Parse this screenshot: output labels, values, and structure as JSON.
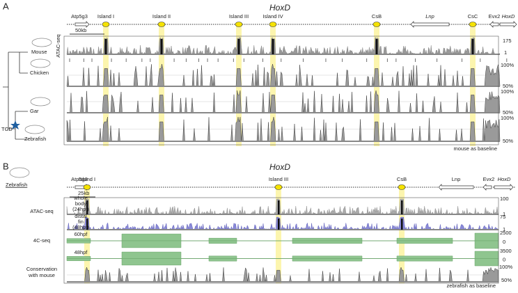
{
  "panel_a": {
    "label": "A",
    "title": "HoxD",
    "genes": [
      "Atp5g3",
      "Island I",
      "Island II",
      "Island III",
      "Island IV",
      "CsB",
      "Lnp",
      "CsC",
      "Evx2",
      "HoxD"
    ],
    "scale_bar": "50kb",
    "atac": {
      "label": "ATAC-seq",
      "max": "175",
      "min": "1"
    },
    "species": [
      "Mouse",
      "Chicken",
      "Gar",
      "Zebrafish"
    ],
    "tgd": "TGD",
    "conservation_axes": [
      [
        "100%",
        "50%"
      ],
      [
        "100%",
        "50%"
      ],
      [
        "100%",
        "50%"
      ]
    ],
    "baseline_note": "mouse as baseline"
  },
  "panel_b": {
    "label": "B",
    "title": "HoxD",
    "species": "Zebrafish",
    "genes": [
      "Atp5g3",
      "Island I",
      "Island III",
      "CsB",
      "Lnp",
      "Evx2",
      "HoxD"
    ],
    "scale_bar": "25kb",
    "atac": {
      "label": "ATAC-seq",
      "tracks": [
        {
          "name": [
            "whole",
            "body",
            "(24hpf)"
          ],
          "max": "100",
          "min": "1"
        },
        {
          "name": [
            "distal",
            "fin",
            "(48hpf)"
          ],
          "max": "75",
          "min": "1"
        }
      ]
    },
    "c4": {
      "label": "4C-seq",
      "tracks": [
        {
          "name": "60hpf",
          "max": "2500",
          "min": "0"
        },
        {
          "name": "48hpf",
          "max": "3500",
          "min": "0"
        }
      ]
    },
    "conservation": {
      "label": [
        "Conservation",
        "with mouse"
      ],
      "max": "100%",
      "min": "50%"
    },
    "baseline_note": "zebrafish as baseline"
  }
}
